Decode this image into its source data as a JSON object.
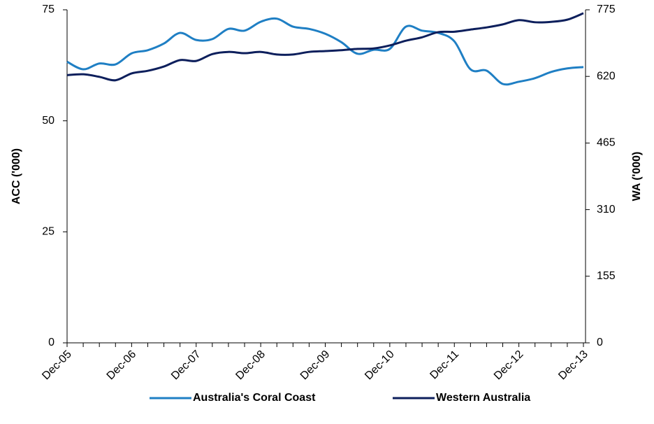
{
  "chart_data": {
    "type": "line",
    "categories": [
      "Dec-05",
      null,
      null,
      null,
      "Dec-06",
      null,
      null,
      null,
      "Dec-07",
      null,
      null,
      null,
      "Dec-08",
      null,
      null,
      null,
      "Dec-09",
      null,
      null,
      null,
      "Dec-10",
      null,
      null,
      null,
      "Dec-11",
      null,
      null,
      null,
      "Dec-12",
      null,
      null,
      null,
      "Dec-13"
    ],
    "series": [
      {
        "name": "Australia's Coral Coast",
        "color": "#1f7fc4",
        "axis": "y",
        "values": [
          63.3,
          61.6,
          62.9,
          62.7,
          65.2,
          65.9,
          67.4,
          69.8,
          68.2,
          68.4,
          70.7,
          70.3,
          72.3,
          73.0,
          71.2,
          70.7,
          69.6,
          67.7,
          65.1,
          66.0,
          66.2,
          71.2,
          70.3,
          69.8,
          67.9,
          61.6,
          61.3,
          58.3,
          58.8,
          59.6,
          61.0,
          61.8,
          62.1
        ]
      },
      {
        "name": "Western Australia",
        "color": "#0d1f5c",
        "axis": "y2",
        "values": [
          623,
          625,
          619,
          611,
          627,
          633,
          643,
          658,
          656,
          672,
          677,
          674,
          677,
          671,
          671,
          677,
          679,
          681,
          684,
          685,
          692,
          703,
          711,
          723,
          724,
          729,
          734,
          741,
          751,
          746,
          747,
          752,
          767
        ]
      }
    ],
    "ylabel": "ACC ('000)",
    "y2label": "WA ('000)",
    "ylim": [
      0,
      75
    ],
    "yticks": [
      0,
      25,
      50,
      75
    ],
    "y2lim": [
      0,
      775
    ],
    "y2ticks": [
      0,
      155,
      310,
      465,
      620,
      775
    ],
    "grid": false,
    "legend": "bottom"
  }
}
